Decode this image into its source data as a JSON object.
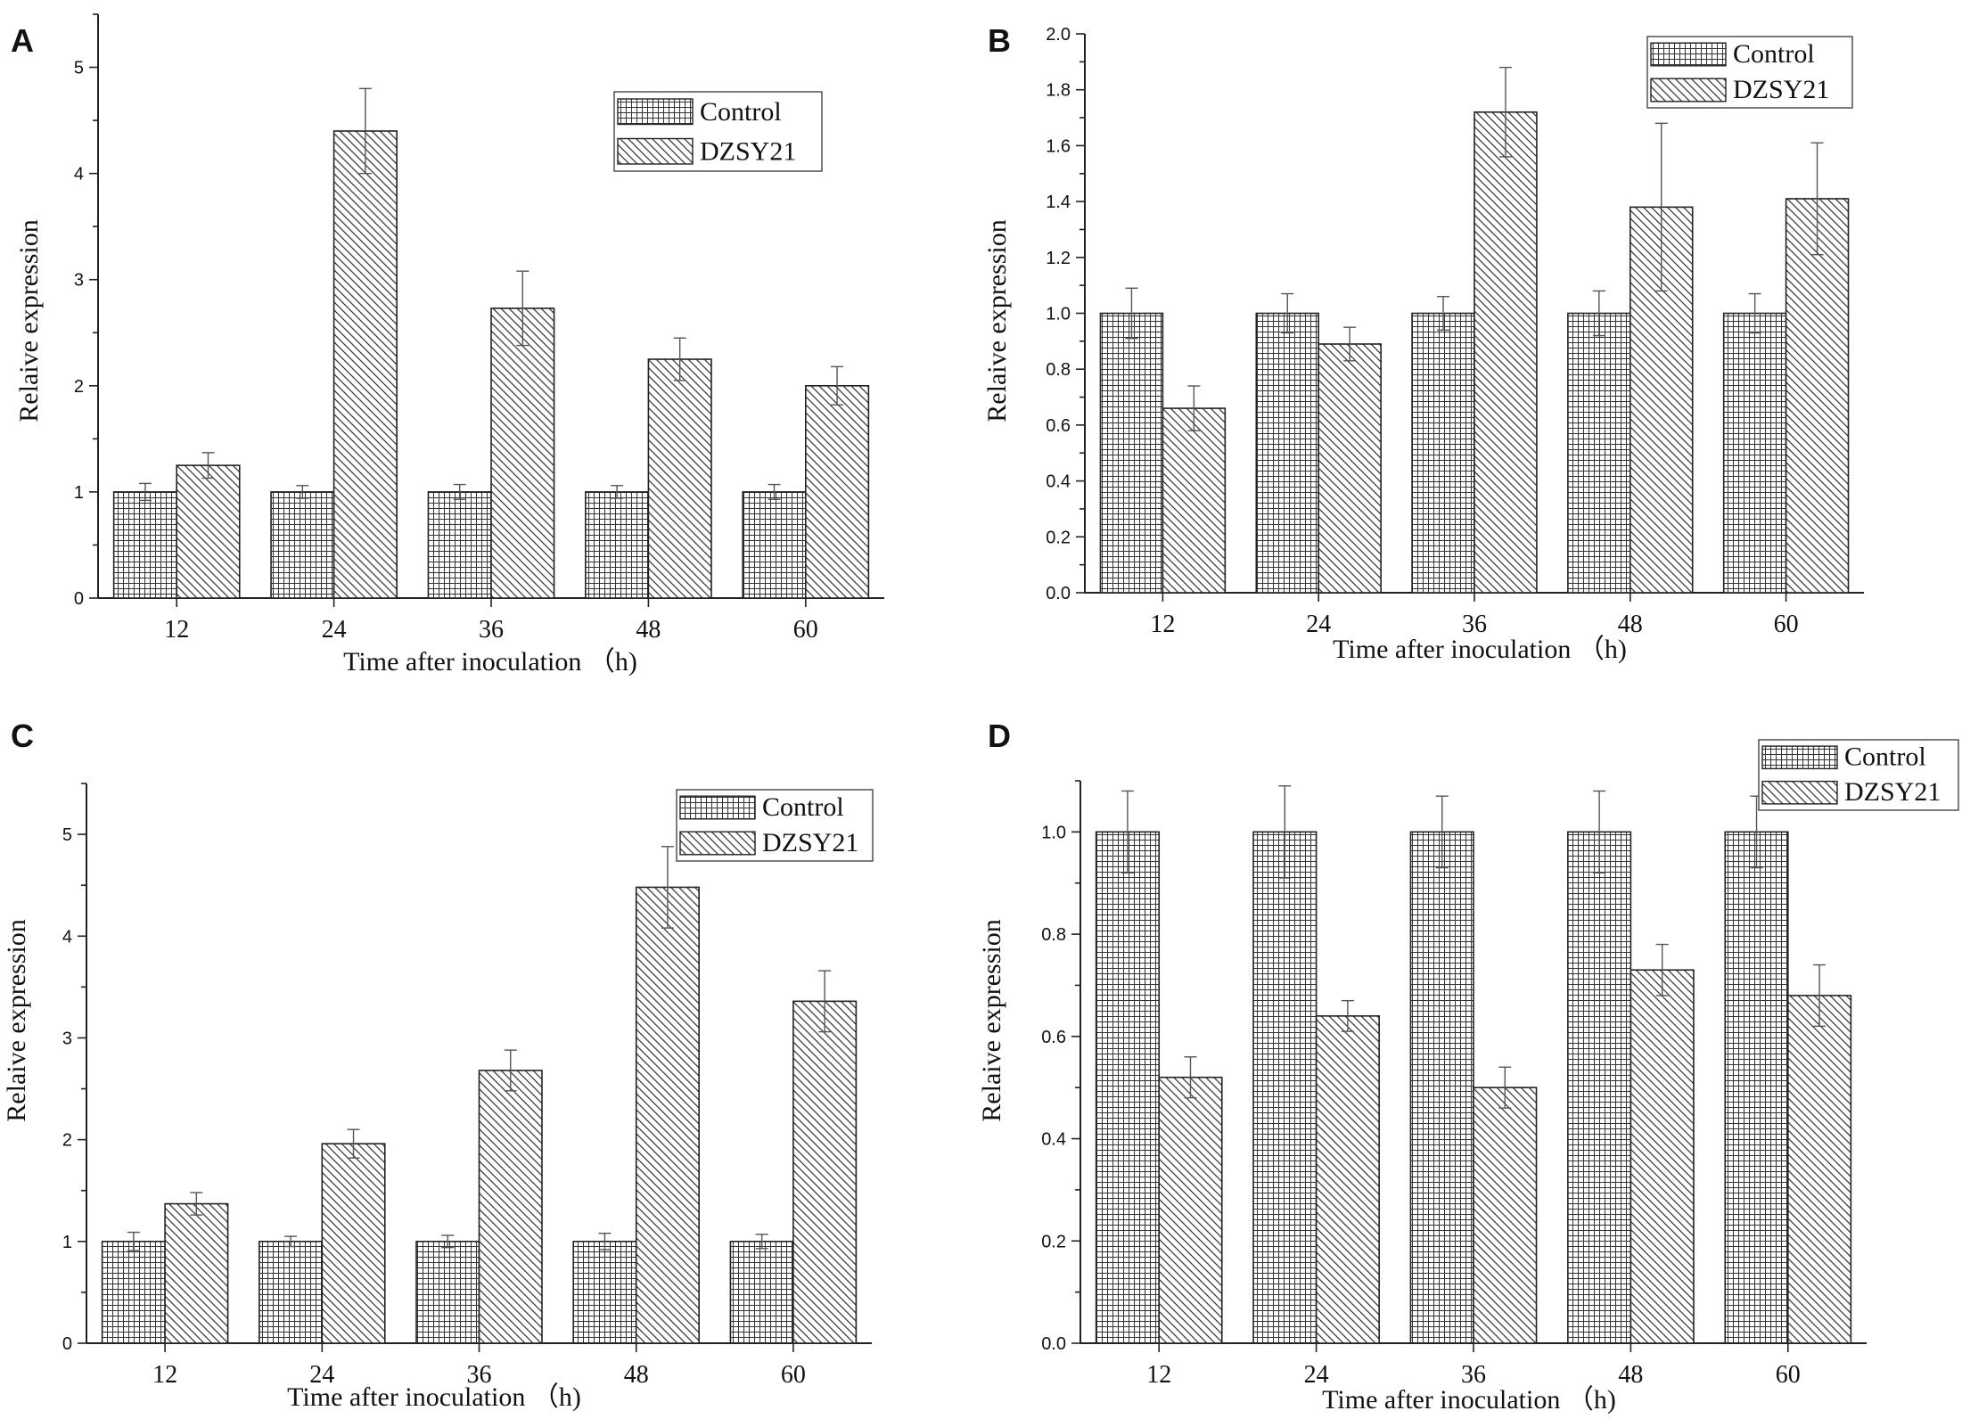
{
  "chart_data": [
    {
      "panel": "A",
      "type": "bar",
      "xlabel": "Time after inoculation （h)",
      "ylabel": "Relaive expression",
      "categories": [
        "12",
        "24",
        "36",
        "48",
        "60"
      ],
      "ylim": [
        0,
        5.5
      ],
      "yticks": [
        0,
        1,
        2,
        3,
        4,
        5
      ],
      "tick_decimals": 0,
      "legend_position": "top-right",
      "series": [
        {
          "name": "Control",
          "pattern": "grid",
          "values": [
            1,
            1,
            1,
            1,
            1
          ],
          "errors": [
            0.08,
            0.06,
            0.07,
            0.06,
            0.07
          ]
        },
        {
          "name": "DZSY21",
          "pattern": "hatch",
          "values": [
            1.25,
            4.4,
            2.73,
            2.25,
            2.0
          ],
          "errors": [
            0.12,
            0.4,
            0.35,
            0.2,
            0.18
          ]
        }
      ]
    },
    {
      "panel": "B",
      "type": "bar",
      "xlabel": "Time after inoculation （h)",
      "ylabel": "Relaive expression",
      "categories": [
        "12",
        "24",
        "36",
        "48",
        "60"
      ],
      "ylim": [
        0,
        2.0
      ],
      "yticks": [
        0.0,
        0.2,
        0.4,
        0.6,
        0.8,
        1.0,
        1.2,
        1.4,
        1.6,
        1.8,
        2.0
      ],
      "tick_decimals": 1,
      "legend_position": "top-right",
      "series": [
        {
          "name": "Control",
          "pattern": "grid",
          "values": [
            1,
            1,
            1,
            1,
            1
          ],
          "errors": [
            0.09,
            0.07,
            0.06,
            0.08,
            0.07
          ]
        },
        {
          "name": "DZSY21",
          "pattern": "hatch",
          "values": [
            0.66,
            0.89,
            1.72,
            1.38,
            1.41
          ],
          "errors": [
            0.08,
            0.06,
            0.16,
            0.3,
            0.2
          ]
        }
      ]
    },
    {
      "panel": "C",
      "type": "bar",
      "xlabel": "Time after inoculation （h)",
      "ylabel": "Relaive expression",
      "categories": [
        "12",
        "24",
        "36",
        "48",
        "60"
      ],
      "ylim": [
        0,
        5.5
      ],
      "yticks": [
        0,
        1,
        2,
        3,
        4,
        5
      ],
      "tick_decimals": 0,
      "legend_position": "top-right",
      "series": [
        {
          "name": "Control",
          "pattern": "grid",
          "values": [
            1,
            1,
            1,
            1,
            1
          ],
          "errors": [
            0.09,
            0.05,
            0.06,
            0.08,
            0.07
          ]
        },
        {
          "name": "DZSY21",
          "pattern": "hatch",
          "values": [
            1.37,
            1.96,
            2.68,
            4.48,
            3.36
          ],
          "errors": [
            0.11,
            0.14,
            0.2,
            0.4,
            0.3
          ]
        }
      ]
    },
    {
      "panel": "D",
      "type": "bar",
      "xlabel": "Time after inoculation （h)",
      "ylabel": "Relaive expression",
      "categories": [
        "12",
        "24",
        "36",
        "48",
        "60"
      ],
      "ylim": [
        0,
        1.1
      ],
      "yticks": [
        0.0,
        0.2,
        0.4,
        0.6,
        0.8,
        1.0
      ],
      "tick_decimals": 1,
      "legend_position": "top-right",
      "series": [
        {
          "name": "Control",
          "pattern": "grid",
          "values": [
            1,
            1,
            1,
            1,
            1
          ],
          "errors": [
            0.08,
            0.09,
            0.07,
            0.08,
            0.07
          ]
        },
        {
          "name": "DZSY21",
          "pattern": "hatch",
          "values": [
            0.52,
            0.64,
            0.5,
            0.73,
            0.68
          ],
          "errors": [
            0.04,
            0.03,
            0.04,
            0.05,
            0.06
          ]
        }
      ]
    }
  ]
}
